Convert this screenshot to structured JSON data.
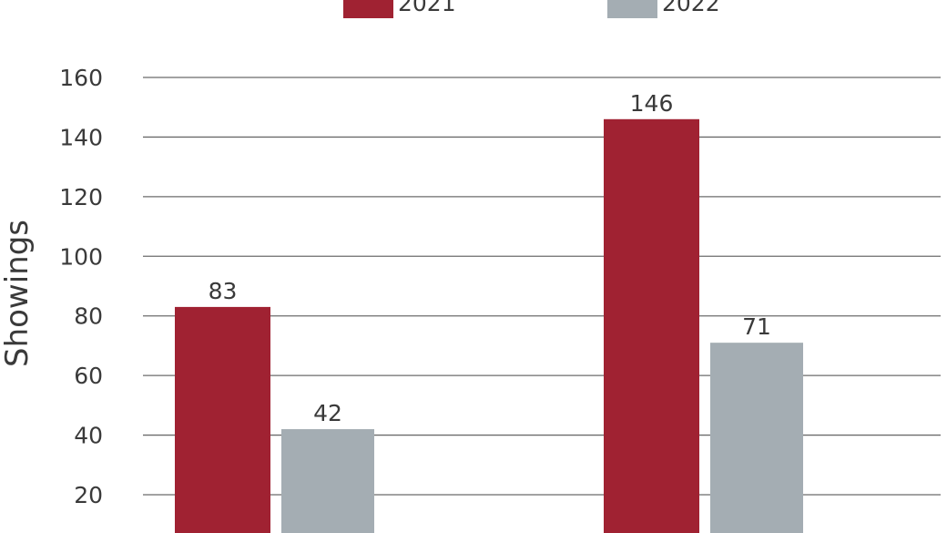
{
  "chart_data": {
    "type": "bar",
    "ylabel": "Showings",
    "xlabel": "",
    "ylim": [
      0,
      160
    ],
    "y_ticks": [
      20,
      40,
      60,
      80,
      100,
      120,
      140,
      160
    ],
    "grid": true,
    "legend_position": "top",
    "categories": [
      "",
      ""
    ],
    "series": [
      {
        "name": "2021",
        "color": "#a02232",
        "values": [
          83,
          146
        ]
      },
      {
        "name": "2022",
        "color": "#a4adb3",
        "values": [
          42,
          71
        ]
      }
    ]
  }
}
